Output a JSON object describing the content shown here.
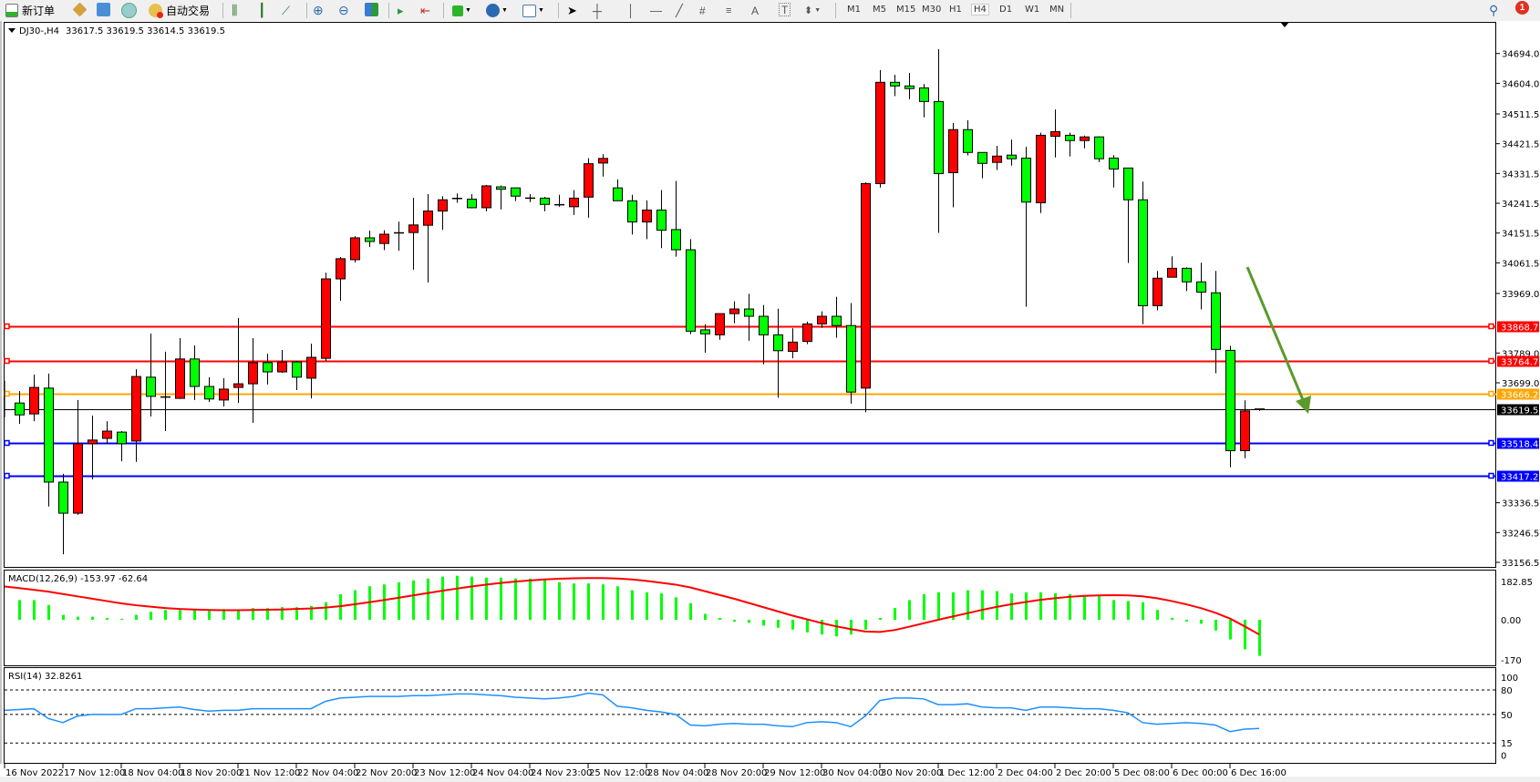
{
  "toolbar": {
    "new_order_label": "新订单",
    "auto_trading_label": "自动交易",
    "timeframes": [
      "M1",
      "M5",
      "M15",
      "M30",
      "H1",
      "H4",
      "D1",
      "W1",
      "MN"
    ],
    "active_timeframe": "H4",
    "notification_count": "1"
  },
  "chart_header": {
    "symbol": "DJ30-,H4",
    "ohlc": "33617.5 33619.5 33614.5 33619.5"
  },
  "colors": {
    "bull_body": "#ff0000",
    "bear_body": "#00ff00",
    "resistance": "#ff0000",
    "pivot": "#ffa500",
    "support": "#0000ff",
    "arrow": "#5a9a2a",
    "macd_hist": "#00ff00",
    "macd_signal": "#ff0000",
    "rsi": "#1e90ff"
  },
  "chart_data": {
    "type": "candlestick",
    "timeframe": "H4",
    "price_ticks": [
      "34694.0",
      "34604.0",
      "34511.5",
      "34421.5",
      "34331.5",
      "34241.5",
      "34151.5",
      "34061.5",
      "33969.0",
      "33789.0",
      "33699.0",
      "33336.5",
      "33246.5",
      "33156.5"
    ],
    "ylim": [
      33140,
      34790
    ],
    "time_labels": [
      "16 Nov 2022",
      "17 Nov 12:00",
      "18 Nov 04:00",
      "18 Nov 20:00",
      "21 Nov 12:00",
      "22 Nov 04:00",
      "22 Nov 20:00",
      "23 Nov 12:00",
      "24 Nov 04:00",
      "24 Nov 23:00",
      "25 Nov 12:00",
      "28 Nov 04:00",
      "28 Nov 20:00",
      "29 Nov 12:00",
      "30 Nov 04:00",
      "30 Nov 20:00",
      "1 Dec 12:00",
      "2 Dec 04:00",
      "2 Dec 20:00",
      "5 Dec 08:00",
      "6 Dec 00:00",
      "6 Dec 16:00"
    ],
    "candles": [
      [
        33638,
        33674,
        33575,
        33602
      ],
      [
        33605,
        33724,
        33583,
        33685
      ],
      [
        33683,
        33727,
        33325,
        33399
      ],
      [
        33399,
        33424,
        33181,
        33305
      ],
      [
        33305,
        33647,
        33300,
        33515
      ],
      [
        33515,
        33600,
        33407,
        33526
      ],
      [
        33531,
        33583,
        33515,
        33553
      ],
      [
        33550,
        33553,
        33462,
        33515
      ],
      [
        33523,
        33740,
        33460,
        33718
      ],
      [
        33716,
        33848,
        33597,
        33658
      ],
      [
        33656,
        33793,
        33553,
        33655
      ],
      [
        33652,
        33834,
        33650,
        33771
      ],
      [
        33771,
        33812,
        33647,
        33688
      ],
      [
        33688,
        33716,
        33641,
        33650
      ],
      [
        33647,
        33713,
        33627,
        33680
      ],
      [
        33685,
        33895,
        33638,
        33696
      ],
      [
        33696,
        33834,
        33578,
        33760
      ],
      [
        33760,
        33787,
        33694,
        33732
      ],
      [
        33732,
        33798,
        33729,
        33762
      ],
      [
        33762,
        33765,
        33677,
        33716
      ],
      [
        33713,
        33817,
        33652,
        33776
      ],
      [
        33773,
        34032,
        33765,
        34013
      ],
      [
        34013,
        34079,
        33947,
        34074
      ],
      [
        34071,
        34142,
        34063,
        34137
      ],
      [
        34137,
        34159,
        34109,
        34126
      ],
      [
        34120,
        34160,
        34100,
        34148
      ],
      [
        34152,
        34186,
        34098,
        34151
      ],
      [
        34153,
        34258,
        34041,
        34176
      ],
      [
        34175,
        34269,
        34002,
        34218
      ],
      [
        34218,
        34263,
        34161,
        34252
      ],
      [
        34256,
        34271,
        34243,
        34255
      ],
      [
        34254,
        34269,
        34226,
        34228
      ],
      [
        34228,
        34297,
        34217,
        34294
      ],
      [
        34291,
        34295,
        34223,
        34284
      ],
      [
        34288,
        34288,
        34248,
        34263
      ],
      [
        34257,
        34269,
        34245,
        34257
      ],
      [
        34257,
        34261,
        34217,
        34238
      ],
      [
        34237,
        34267,
        34231,
        34236
      ],
      [
        34231,
        34281,
        34206,
        34257
      ],
      [
        34260,
        34378,
        34198,
        34361
      ],
      [
        34363,
        34390,
        34322,
        34377
      ],
      [
        34288,
        34314,
        34249,
        34249
      ],
      [
        34249,
        34267,
        34147,
        34185
      ],
      [
        34185,
        34250,
        34133,
        34221
      ],
      [
        34221,
        34281,
        34106,
        34160
      ],
      [
        34162,
        34309,
        34080,
        34101
      ],
      [
        34101,
        34133,
        33846,
        33855
      ],
      [
        33859,
        33876,
        33790,
        33847
      ],
      [
        33844,
        33908,
        33829,
        33908
      ],
      [
        33908,
        33945,
        33879,
        33922
      ],
      [
        33922,
        33968,
        33826,
        33900
      ],
      [
        33900,
        33934,
        33755,
        33844
      ],
      [
        33844,
        33923,
        33654,
        33796
      ],
      [
        33794,
        33864,
        33773,
        33822
      ],
      [
        33824,
        33884,
        33816,
        33877
      ],
      [
        33877,
        33915,
        33865,
        33900
      ],
      [
        33900,
        33959,
        33835,
        33872
      ],
      [
        33872,
        33940,
        33636,
        33671
      ],
      [
        33683,
        34305,
        33610,
        34301
      ],
      [
        34301,
        34644,
        34289,
        34607
      ],
      [
        34607,
        34630,
        34565,
        34596
      ],
      [
        34596,
        34635,
        34556,
        34588
      ],
      [
        34590,
        34602,
        34501,
        34549
      ],
      [
        34549,
        34707,
        34152,
        34331
      ],
      [
        34334,
        34484,
        34229,
        34464
      ],
      [
        34464,
        34492,
        34386,
        34395
      ],
      [
        34395,
        34395,
        34317,
        34362
      ],
      [
        34365,
        34415,
        34342,
        34384
      ],
      [
        34387,
        34434,
        34355,
        34376
      ],
      [
        34378,
        34412,
        33929,
        34245
      ],
      [
        34243,
        34455,
        34212,
        34447
      ],
      [
        34444,
        34525,
        34380,
        34458
      ],
      [
        34447,
        34455,
        34383,
        34431
      ],
      [
        34431,
        34446,
        34408,
        34442
      ],
      [
        34442,
        34444,
        34366,
        34376
      ],
      [
        34378,
        34387,
        34289,
        34345
      ],
      [
        34348,
        34348,
        34061,
        34252
      ],
      [
        34252,
        34307,
        33876,
        33932
      ],
      [
        33932,
        34037,
        33918,
        34015
      ],
      [
        34018,
        34081,
        34018,
        34045
      ],
      [
        34045,
        34048,
        33976,
        34004
      ],
      [
        34004,
        34062,
        33921,
        33973
      ],
      [
        33971,
        34037,
        33728,
        33800
      ],
      [
        33797,
        33811,
        33444,
        33494
      ],
      [
        33494,
        33646,
        33471,
        33614
      ],
      [
        33617.5,
        33619.5,
        33614.5,
        33619.5
      ]
    ],
    "levels": [
      {
        "value": "33868.7",
        "kind": "resistance"
      },
      {
        "value": "33764.7",
        "kind": "resistance"
      },
      {
        "value": "33666.2",
        "kind": "pivot"
      },
      {
        "value": "33518.4",
        "kind": "support"
      },
      {
        "value": "33417.2",
        "kind": "support"
      }
    ],
    "current_price": "33619.5",
    "macd": {
      "label": "MACD(12,26,9) -153.97 -62.64",
      "ticks": [
        "182.85",
        "0.00",
        "-170"
      ],
      "ylim": [
        -185,
        182.85
      ],
      "histogram": [
        84,
        84,
        63,
        21,
        13,
        13,
        8,
        4,
        21,
        34,
        42,
        42,
        42,
        42,
        46,
        42,
        50,
        50,
        54,
        54,
        59,
        75,
        109,
        126,
        143,
        151,
        160,
        168,
        176,
        184,
        188,
        184,
        180,
        180,
        176,
        176,
        172,
        160,
        155,
        155,
        151,
        143,
        126,
        117,
        113,
        96,
        71,
        25,
        8,
        -8,
        -13,
        -25,
        -34,
        -42,
        -54,
        -63,
        -71,
        -63,
        -42,
        8,
        50,
        84,
        109,
        117,
        117,
        126,
        126,
        122,
        113,
        117,
        117,
        113,
        109,
        105,
        101,
        84,
        80,
        75,
        42,
        8,
        -8,
        -17,
        -46,
        -84,
        -126,
        -153.97
      ],
      "signal": [
        135,
        128,
        120,
        110,
        100,
        90,
        80,
        70,
        62,
        56,
        50,
        46,
        44,
        42,
        41,
        41,
        42,
        43,
        44,
        46,
        48,
        52,
        58,
        66,
        75,
        84,
        94,
        104,
        114,
        124,
        133,
        142,
        150,
        157,
        163,
        168,
        172,
        175,
        177,
        178,
        178,
        176,
        172,
        166,
        158,
        150,
        138,
        122,
        106,
        90,
        72,
        54,
        36,
        18,
        2,
        -14,
        -28,
        -40,
        -50,
        -52,
        -44,
        -30,
        -15,
        0,
        14,
        28,
        42,
        55,
        66,
        76,
        85,
        92,
        98,
        102,
        104,
        105,
        104,
        100,
        92,
        80,
        66,
        50,
        30,
        5,
        -28,
        -62.64
      ]
    },
    "rsi": {
      "label": "RSI(14) 32.8261",
      "ticks": [
        "100",
        "80",
        "50",
        "15",
        "0"
      ],
      "levels": [
        80,
        50,
        15
      ],
      "values": [
        56,
        57,
        45,
        40,
        48,
        50,
        50,
        50,
        57,
        57,
        58,
        59,
        56,
        54,
        55,
        55,
        57,
        57,
        57,
        57,
        57,
        66,
        70,
        71,
        72,
        72,
        72,
        73,
        73,
        74,
        75,
        75,
        74,
        73,
        71,
        70,
        69,
        70,
        72,
        76,
        74,
        60,
        58,
        55,
        53,
        50,
        37,
        36,
        38,
        39,
        38,
        38,
        36,
        35,
        40,
        41,
        40,
        35,
        48,
        67,
        70,
        70,
        69,
        62,
        62,
        63,
        59,
        58,
        58,
        55,
        59,
        59,
        58,
        57,
        57,
        55,
        52,
        40,
        38,
        39,
        40,
        39,
        37,
        29,
        32,
        32.83
      ]
    }
  }
}
